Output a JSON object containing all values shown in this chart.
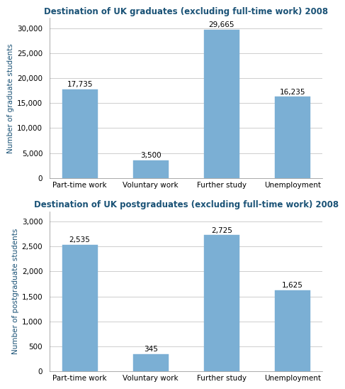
{
  "chart1": {
    "title": "Destination of UK graduates (excluding full-time work) 2008",
    "categories": [
      "Part-time work",
      "Voluntary work",
      "Further study",
      "Unemployment"
    ],
    "values": [
      17735,
      3500,
      29665,
      16235
    ],
    "labels": [
      "17,735",
      "3,500",
      "29,665",
      "16,235"
    ],
    "ylabel": "Number of graduate students",
    "ylim": [
      0,
      32000
    ],
    "yticks": [
      0,
      5000,
      10000,
      15000,
      20000,
      25000,
      30000
    ],
    "ytick_labels": [
      "0",
      "5,000",
      "10,000",
      "15,000",
      "20,000",
      "25,000",
      "30,000"
    ]
  },
  "chart2": {
    "title": "Destination of UK postgraduates (excluding full-time work) 2008",
    "categories": [
      "Part-time work",
      "Voluntary work",
      "Further study",
      "Unemployment"
    ],
    "values": [
      2535,
      345,
      2725,
      1625
    ],
    "labels": [
      "2,535",
      "345",
      "2,725",
      "1,625"
    ],
    "ylabel": "Number of postgraduate students",
    "ylim": [
      0,
      3200
    ],
    "yticks": [
      0,
      500,
      1000,
      1500,
      2000,
      2500,
      3000
    ],
    "ytick_labels": [
      "0",
      "500",
      "1,000",
      "1,500",
      "2,000",
      "2,500",
      "3,000"
    ]
  },
  "bar_color": "#7BAFD4",
  "bar_edge_color": "#7BAFD4",
  "title_color": "#1A5276",
  "ylabel_color": "#1A5276",
  "background_color": "#FFFFFF",
  "grid_color": "#BBBBBB",
  "label_fontsize": 7.5,
  "title_fontsize": 8.5,
  "ylabel_fontsize": 7.5,
  "xtick_fontsize": 7.5,
  "ytick_fontsize": 7.5,
  "bar_width": 0.5
}
